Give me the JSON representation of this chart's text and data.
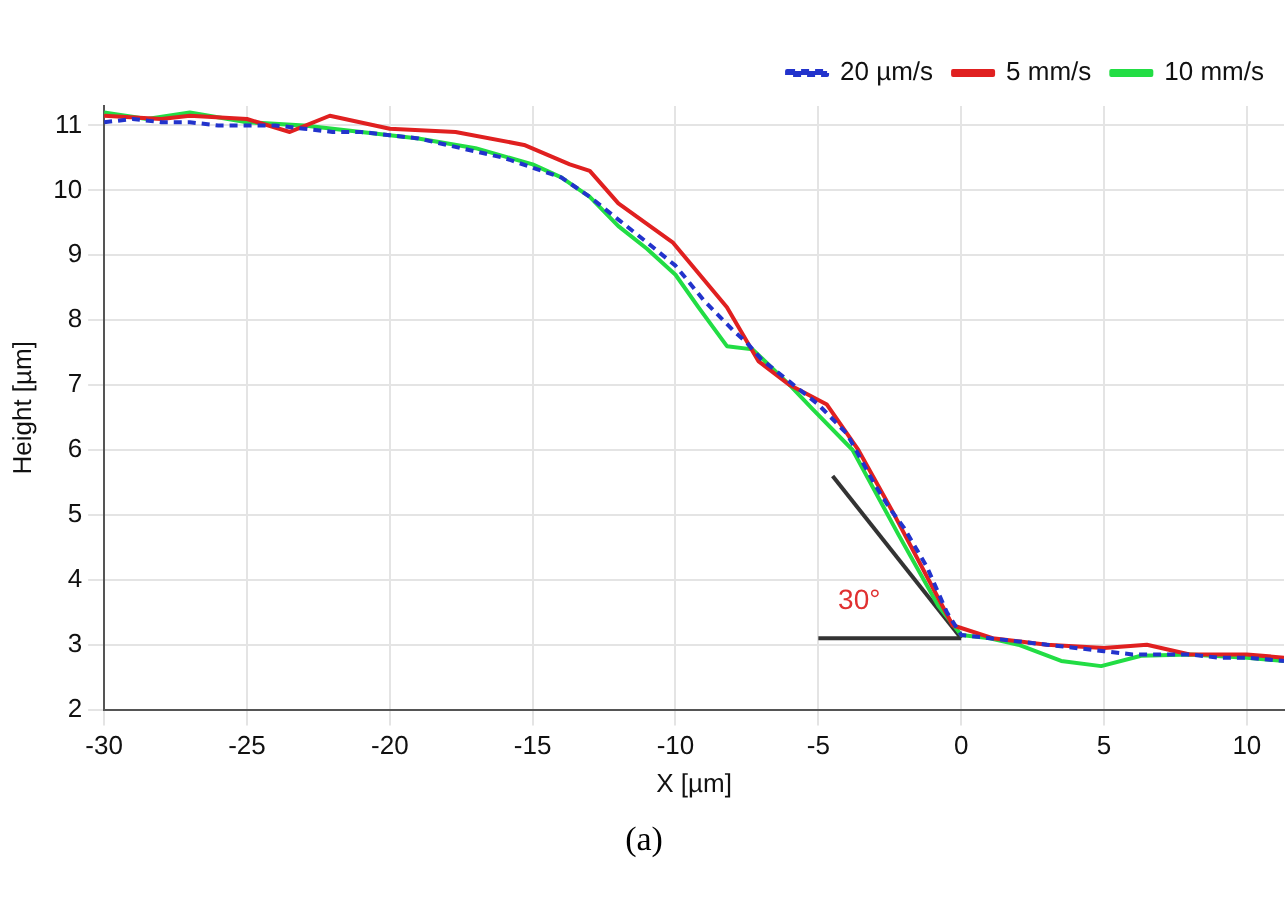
{
  "chart_data": {
    "type": "line",
    "xlabel": "X [µm]",
    "ylabel": "Height [µm]",
    "xlim": [
      -30,
      11.3
    ],
    "ylim": [
      2,
      11.3
    ],
    "xticks": [
      -30,
      -25,
      -20,
      -15,
      -10,
      -5,
      0,
      5,
      10
    ],
    "yticks": [
      2,
      3,
      4,
      5,
      6,
      7,
      8,
      9,
      10,
      11
    ],
    "grid": true,
    "legend": "top right",
    "annotations": [
      "30°",
      "(a)"
    ],
    "series": [
      {
        "name": "20 µm/s",
        "color": "#2233cc",
        "line_style": "dashed",
        "x": [
          -30,
          -29,
          -28,
          -27,
          -26,
          -25,
          -24,
          -23,
          -22,
          -21,
          -20,
          -19,
          -18,
          -17,
          -16,
          -15,
          -14,
          -13,
          -12,
          -11,
          -10,
          -9,
          -8,
          -7.5,
          -7,
          -6,
          -5,
          -4,
          -3,
          -2.5,
          -2,
          -1.2,
          -0.5,
          0,
          1,
          2,
          3,
          4,
          5,
          6,
          7,
          8,
          9,
          10,
          11.3
        ],
        "values": [
          11.05,
          11.1,
          11.05,
          11.05,
          11.0,
          11.0,
          11.0,
          10.95,
          10.9,
          10.9,
          10.85,
          10.8,
          10.7,
          10.6,
          10.5,
          10.35,
          10.2,
          9.9,
          9.55,
          9.2,
          8.84,
          8.3,
          7.85,
          7.65,
          7.4,
          7.05,
          6.7,
          6.25,
          5.45,
          5.1,
          4.8,
          4.2,
          3.5,
          3.15,
          3.1,
          3.05,
          3.0,
          2.95,
          2.9,
          2.85,
          2.85,
          2.85,
          2.8,
          2.8,
          2.75
        ]
      },
      {
        "name": "5 mm/s",
        "color": "#e02020",
        "line_style": "solid",
        "x": [
          -30,
          -28,
          -27,
          -25,
          -23.5,
          -22.1,
          -20,
          -17.7,
          -15.3,
          -13.7,
          -13,
          -12,
          -10.1,
          -8.2,
          -7.1,
          -6,
          -4.7,
          -3.6,
          -2.4,
          -1.2,
          -0.3,
          1.1,
          3,
          5,
          6.5,
          8,
          10,
          11.3
        ],
        "values": [
          11.15,
          11.1,
          11.15,
          11.1,
          10.9,
          11.15,
          10.95,
          10.9,
          10.7,
          10.4,
          10.3,
          9.8,
          9.2,
          8.2,
          7.37,
          7.0,
          6.7,
          6.0,
          5.05,
          4.05,
          3.3,
          3.1,
          3.0,
          2.95,
          3.0,
          2.85,
          2.85,
          2.8
        ]
      },
      {
        "name": "10 mm/s",
        "color": "#22dd44",
        "line_style": "solid",
        "x": [
          -30,
          -28.5,
          -27,
          -25,
          -23,
          -21,
          -19,
          -17,
          -15,
          -14,
          -13,
          -12,
          -11,
          -10,
          -9.2,
          -8.2,
          -7.3,
          -6,
          -5.2,
          -3.8,
          -2.2,
          -0.8,
          0,
          1,
          2,
          3.5,
          4.9,
          6.3,
          8,
          10,
          11.3
        ],
        "values": [
          11.2,
          11.1,
          11.2,
          11.05,
          11.0,
          10.9,
          10.8,
          10.65,
          10.4,
          10.2,
          9.9,
          9.45,
          9.1,
          8.7,
          8.2,
          7.6,
          7.55,
          7.0,
          6.63,
          6.0,
          4.7,
          3.6,
          3.15,
          3.1,
          3.0,
          2.75,
          2.67,
          2.83,
          2.85,
          2.8,
          2.75
        ]
      },
      {
        "color": "#333333",
        "line_style": "solid",
        "x": [
          -4.5,
          0
        ],
        "values": [
          5.6,
          3.1
        ]
      },
      {
        "color": "#333333",
        "line_style": "solid",
        "x": [
          -5,
          0
        ],
        "values": [
          3.1,
          3.1
        ]
      }
    ]
  }
}
